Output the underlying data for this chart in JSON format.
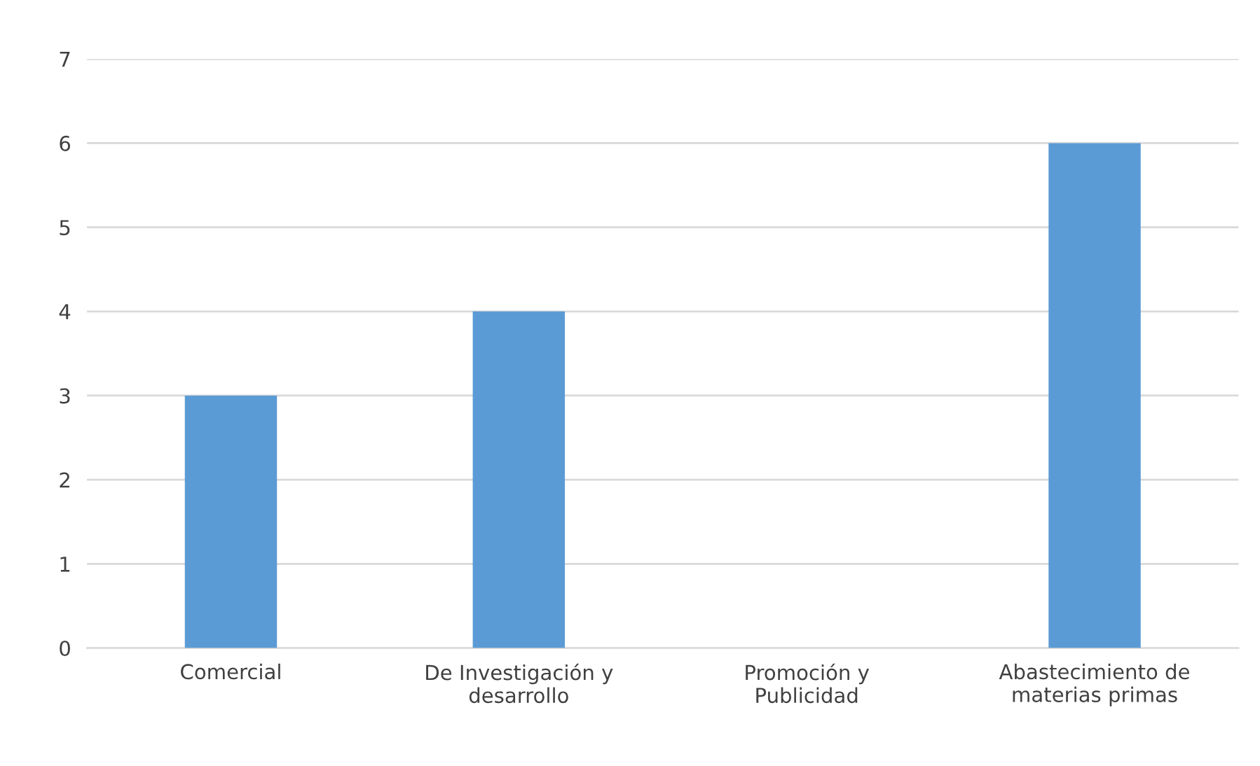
{
  "chart_data": {
    "type": "bar",
    "categories": [
      "Comercial",
      "De Investigación y\ndesarrollo",
      "Promoción y\nPublicidad",
      "Abastecimiento de\nmaterias primas"
    ],
    "values": [
      3,
      4,
      0,
      6
    ],
    "color": "#5b9bd5",
    "ylim": [
      0,
      7
    ],
    "yticks": [
      0,
      1,
      2,
      3,
      4,
      5,
      6,
      7
    ],
    "grid": "y",
    "legend": false
  }
}
